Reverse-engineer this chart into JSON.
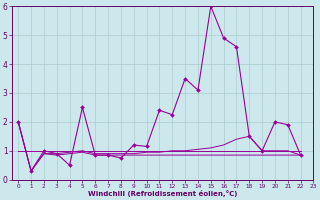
{
  "xlabel": "Windchill (Refroidissement éolien,°C)",
  "background_color": "#cce8ec",
  "grid_color": "#aacccc",
  "line_color": "#990099",
  "xlim": [
    -0.5,
    23
  ],
  "ylim": [
    0,
    6
  ],
  "xticks": [
    0,
    1,
    2,
    3,
    4,
    5,
    6,
    7,
    8,
    9,
    10,
    11,
    12,
    13,
    14,
    15,
    16,
    17,
    18,
    19,
    20,
    21,
    22,
    23
  ],
  "yticks": [
    0,
    1,
    2,
    3,
    4,
    5,
    6
  ],
  "series_main": [
    2.0,
    0.3,
    1.0,
    0.9,
    0.5,
    2.5,
    0.85,
    0.85,
    0.75,
    1.2,
    1.15,
    2.4,
    2.25,
    3.5,
    3.1,
    6.0,
    4.9,
    4.6,
    1.5,
    1.0,
    2.0,
    1.9,
    0.85
  ],
  "series_flat1": [
    1.0,
    1.0,
    1.0,
    1.0,
    1.0,
    1.0,
    1.0,
    1.0,
    1.0,
    1.0,
    1.0,
    1.0,
    1.0,
    1.0,
    1.0,
    1.0,
    1.0,
    1.0,
    1.0,
    1.0,
    1.0,
    1.0,
    1.0
  ],
  "series_flat2": [
    2.0,
    0.3,
    0.9,
    0.9,
    0.95,
    1.0,
    0.9,
    0.9,
    0.9,
    0.9,
    0.95,
    0.95,
    1.0,
    1.0,
    1.05,
    1.1,
    1.2,
    1.4,
    1.5,
    1.0,
    1.0,
    1.0,
    0.85
  ],
  "series_flat3": [
    2.0,
    0.3,
    0.9,
    0.85,
    0.9,
    0.95,
    0.85,
    0.85,
    0.85,
    0.85,
    0.85,
    0.85,
    0.85,
    0.85,
    0.85,
    0.85,
    0.85,
    0.85,
    0.85,
    0.85,
    0.85,
    0.85,
    0.85
  ]
}
